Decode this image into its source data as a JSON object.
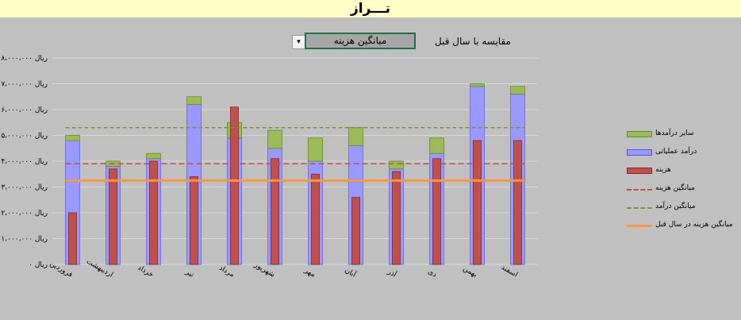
{
  "header": {
    "title": "تـــراز"
  },
  "selector": {
    "label": "مقایسه با سال قبل",
    "selected": "میانگین هزینه",
    "arrow": "▾"
  },
  "colors": {
    "other_income": "#9bbb59",
    "operating_income": "#9999ff",
    "cost": "#c0504d",
    "avg_cost_line": "#c0504d",
    "avg_income_line": "#77933c",
    "prev_year_line": "#f79646",
    "background": "#c0c0c0",
    "title_bar": "#ffffc8"
  },
  "chart_data": {
    "type": "bar",
    "categories": [
      "فروردین",
      "اردیبهشت",
      "خرداد",
      "تیر",
      "مرداد",
      "شهریور",
      "مهر",
      "آبان",
      "آذر",
      "دی",
      "بهمن",
      "اسفند"
    ],
    "y_tick_labels": [
      "ریال ۰",
      "ریال ۱،۰۰۰،۰۰۰",
      "ریال ۲،۰۰۰،۰۰۰",
      "ریال ۳،۰۰۰،۰۰۰",
      "ریال ۴،۰۰۰،۰۰۰",
      "ریال ۵،۰۰۰،۰۰۰",
      "ریال ۶،۰۰۰،۰۰۰",
      "ریال ۷،۰۰۰،۰۰۰",
      "ریال ۸،۰۰۰،۰۰۰"
    ],
    "ylim": [
      0,
      8000000
    ],
    "series": [
      {
        "name": "درآمد عملیاتی",
        "kind": "stacked-bar",
        "values": [
          4800000,
          3800000,
          4100000,
          6200000,
          4900000,
          4500000,
          4000000,
          4600000,
          3700000,
          4300000,
          6900000,
          6600000
        ]
      },
      {
        "name": "سایر درآمدها",
        "kind": "stacked-bar",
        "values": [
          200000,
          200000,
          200000,
          300000,
          600000,
          700000,
          900000,
          700000,
          300000,
          600000,
          100000,
          300000
        ]
      },
      {
        "name": "هزینه",
        "kind": "bar",
        "values": [
          2000000,
          3700000,
          4000000,
          3400000,
          6100000,
          4100000,
          3500000,
          2600000,
          3600000,
          4100000,
          4800000,
          4800000
        ]
      },
      {
        "name": "میانگین هزینه",
        "kind": "hline",
        "value": 3900000
      },
      {
        "name": "میانگین درآمد",
        "kind": "hline",
        "value": 5300000
      },
      {
        "name": "میانگین هزینه در سال قبل",
        "kind": "hline",
        "value": 3250000
      }
    ],
    "legend": [
      "سایر درآمدها",
      "درآمد عملیاتی",
      "هزینه",
      "میانگین هزینه",
      "میانگین درآمد",
      "میانگین هزینه در سال قبل"
    ],
    "grid": true,
    "legend_position": "right"
  }
}
